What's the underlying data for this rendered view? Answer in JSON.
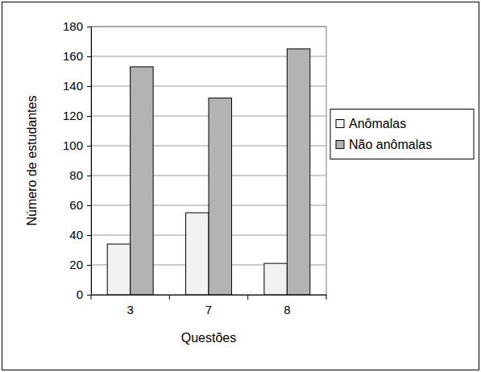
{
  "chart_data": {
    "type": "bar",
    "xlabel": "Questões",
    "ylabel": "Número de estudantes",
    "categories": [
      "3",
      "7",
      "8"
    ],
    "series": [
      {
        "name": "Anômalas",
        "color": "#f2f2f2",
        "values": [
          34,
          55,
          21
        ]
      },
      {
        "name": "Não anômalas",
        "color": "#b3b3b3",
        "values": [
          153,
          132,
          165
        ]
      }
    ],
    "ylim": [
      0,
      180
    ],
    "yticks": [
      0,
      20,
      40,
      60,
      80,
      100,
      120,
      140,
      160,
      180
    ],
    "grid": true,
    "legend": "right"
  }
}
